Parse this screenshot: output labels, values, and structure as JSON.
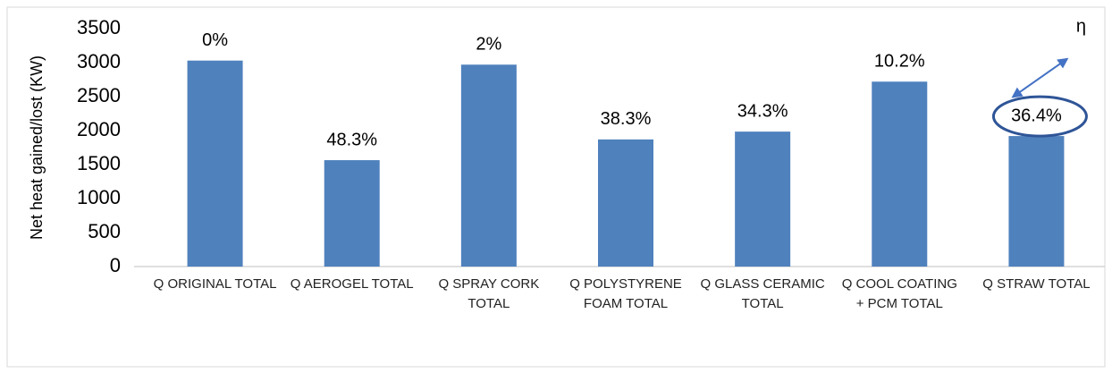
{
  "chart_data": {
    "type": "bar",
    "y_label": "Net heat gained/lost (KW)",
    "categories": [
      "Q ORIGINAL TOTAL",
      "Q AEROGEL TOTAL",
      "Q SPRAY CORK TOTAL",
      "Q POLYSTYRENE FOAM TOTAL",
      "Q GLASS CERAMIC TOTAL",
      "Q COOL COATING + PCM TOTAL",
      "Q STRAW TOTAL"
    ],
    "values": [
      3030,
      1565,
      2970,
      1870,
      1985,
      2720,
      1920
    ],
    "annotations": [
      "0%",
      "48.3%",
      "2%",
      "38.3%",
      "34.3%",
      "10.2%",
      "36.4%"
    ],
    "highlight_symbol": "η",
    "color": "#4f81bd",
    "ylim": [
      0,
      3500
    ],
    "yticks": [
      0,
      500,
      1000,
      1500,
      2000,
      2500,
      3000,
      3500
    ],
    "grid": false
  }
}
